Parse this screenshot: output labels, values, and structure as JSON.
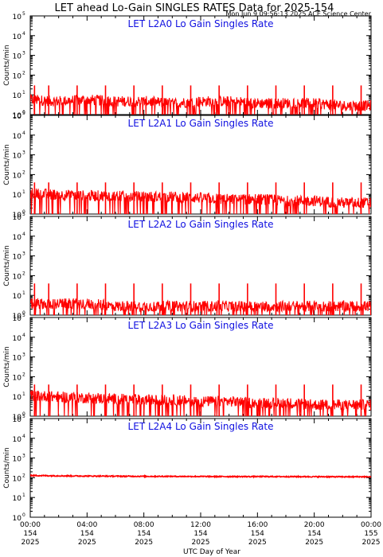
{
  "title": "LET ahead Lo-Gain SINGLES RATES Data for 2025-154",
  "timestamp": "Mon Jun  9 09:56:13 2025 ACE Science Center",
  "x_axis_label": "UTC Day of Year",
  "colors": {
    "trace": "#ff0000",
    "panel_title": "#1010e0",
    "axis": "#000000"
  },
  "chart_data": [
    {
      "type": "line",
      "title": "LET L2A0 Lo Gain Singles Rate",
      "ylabel": "Counts/min",
      "yscale": "log",
      "ylim": [
        1,
        100000
      ],
      "y_ticks": [
        {
          "base": "10",
          "exp": "0"
        },
        {
          "base": "10",
          "exp": "1"
        },
        {
          "base": "10",
          "exp": "2"
        },
        {
          "base": "10",
          "exp": "3"
        },
        {
          "base": "10",
          "exp": "4"
        },
        {
          "base": "10",
          "exp": "5"
        }
      ],
      "x": [
        "00:00",
        "02:00",
        "04:00",
        "06:00",
        "08:00",
        "10:00",
        "12:00",
        "14:00",
        "16:00",
        "18:00",
        "20:00",
        "22:00",
        "00:00"
      ],
      "values": [
        6,
        5,
        6,
        5,
        5,
        4,
        5,
        5,
        4,
        4,
        4,
        3,
        3
      ],
      "spike_value": 30,
      "spike_hours": [
        0.3,
        1.3,
        3.3,
        5.3,
        7.3,
        9.3,
        11.3,
        13.3,
        15.3,
        17.3,
        19.3,
        21.3,
        23.3
      ]
    },
    {
      "type": "line",
      "title": "LET L2A1 Lo Gain Singles Rate",
      "ylabel": "Counts/min",
      "yscale": "log",
      "ylim": [
        1,
        100000
      ],
      "y_ticks": [
        {
          "base": "10",
          "exp": "0"
        },
        {
          "base": "10",
          "exp": "1"
        },
        {
          "base": "10",
          "exp": "2"
        },
        {
          "base": "10",
          "exp": "3"
        },
        {
          "base": "10",
          "exp": "4"
        },
        {
          "base": "10",
          "exp": "5"
        }
      ],
      "x": [
        "00:00",
        "02:00",
        "04:00",
        "06:00",
        "08:00",
        "10:00",
        "12:00",
        "14:00",
        "16:00",
        "18:00",
        "20:00",
        "22:00",
        "00:00"
      ],
      "values": [
        12,
        10,
        9,
        9,
        8,
        8,
        7,
        6,
        6,
        5,
        5,
        4,
        4
      ],
      "spike_value": 40,
      "spike_hours": [
        0.3,
        1.3,
        3.3,
        5.3,
        7.3,
        9.3,
        11.3,
        13.3,
        15.3,
        17.3,
        19.3,
        21.3,
        23.3
      ]
    },
    {
      "type": "line",
      "title": "LET L2A2 Lo Gain Singles Rate",
      "ylabel": "Counts/min",
      "yscale": "log",
      "ylim": [
        1,
        100000
      ],
      "y_ticks": [
        {
          "base": "10",
          "exp": "0"
        },
        {
          "base": "10",
          "exp": "1"
        },
        {
          "base": "10",
          "exp": "2"
        },
        {
          "base": "10",
          "exp": "3"
        },
        {
          "base": "10",
          "exp": "4"
        },
        {
          "base": "10",
          "exp": "5"
        }
      ],
      "x": [
        "00:00",
        "02:00",
        "04:00",
        "06:00",
        "08:00",
        "10:00",
        "12:00",
        "14:00",
        "16:00",
        "18:00",
        "20:00",
        "22:00",
        "00:00"
      ],
      "values": [
        4,
        4,
        4,
        3,
        3,
        3,
        3,
        3,
        3,
        3,
        3,
        3,
        3
      ],
      "spike_value": 40,
      "spike_hours": [
        0.3,
        1.3,
        3.3,
        5.3,
        7.3,
        9.3,
        11.3,
        13.3,
        15.3,
        17.3,
        19.3,
        21.3,
        23.3
      ]
    },
    {
      "type": "line",
      "title": "LET L2A3 Lo Gain Singles Rate",
      "ylabel": "Counts/min",
      "yscale": "log",
      "ylim": [
        1,
        100000
      ],
      "y_ticks": [
        {
          "base": "10",
          "exp": "0"
        },
        {
          "base": "10",
          "exp": "1"
        },
        {
          "base": "10",
          "exp": "2"
        },
        {
          "base": "10",
          "exp": "3"
        },
        {
          "base": "10",
          "exp": "4"
        },
        {
          "base": "10",
          "exp": "5"
        }
      ],
      "x": [
        "00:00",
        "02:00",
        "04:00",
        "06:00",
        "08:00",
        "10:00",
        "12:00",
        "14:00",
        "16:00",
        "18:00",
        "20:00",
        "22:00",
        "00:00"
      ],
      "values": [
        12,
        10,
        9,
        8,
        7,
        7,
        6,
        6,
        5,
        5,
        4,
        4,
        4
      ],
      "spike_value": 40,
      "spike_hours": [
        0.3,
        1.3,
        3.3,
        5.3,
        7.3,
        9.3,
        11.3,
        13.3,
        15.3,
        17.3,
        19.3,
        21.3,
        23.3
      ]
    },
    {
      "type": "line",
      "title": "LET L2A4 Lo Gain Singles Rate",
      "ylabel": "Counts/min",
      "yscale": "log",
      "ylim": [
        1,
        100000
      ],
      "y_ticks": [
        {
          "base": "10",
          "exp": "0"
        },
        {
          "base": "10",
          "exp": "1"
        },
        {
          "base": "10",
          "exp": "2"
        },
        {
          "base": "10",
          "exp": "3"
        },
        {
          "base": "10",
          "exp": "4"
        },
        {
          "base": "10",
          "exp": "5"
        }
      ],
      "x": [
        "00:00",
        "02:00",
        "04:00",
        "06:00",
        "08:00",
        "10:00",
        "12:00",
        "14:00",
        "16:00",
        "18:00",
        "20:00",
        "22:00",
        "00:00"
      ],
      "values": [
        130,
        125,
        122,
        120,
        118,
        117,
        116,
        115,
        115,
        114,
        113,
        112,
        112
      ],
      "spike_value": 0,
      "spike_hours": []
    }
  ],
  "x_ticks": [
    {
      "time": "00:00",
      "day": "154",
      "year": "2025"
    },
    {
      "time": "04:00",
      "day": "154",
      "year": "2025"
    },
    {
      "time": "08:00",
      "day": "154",
      "year": "2025"
    },
    {
      "time": "12:00",
      "day": "154",
      "year": "2025"
    },
    {
      "time": "16:00",
      "day": "154",
      "year": "2025"
    },
    {
      "time": "20:00",
      "day": "154",
      "year": "2025"
    },
    {
      "time": "00:00",
      "day": "155",
      "year": "2025"
    }
  ]
}
